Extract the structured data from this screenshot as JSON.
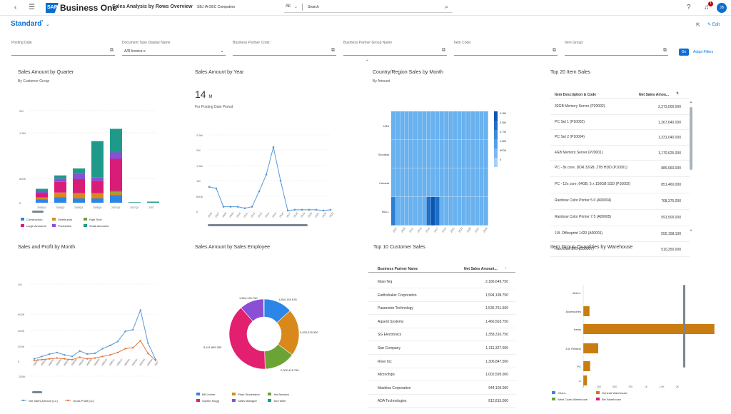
{
  "header": {
    "logo_text": "Business One",
    "logo_mark": "SAP",
    "app_title": "Sales Analysis by Rows Overview",
    "company": "SBJ IA OEC Computers",
    "search_scope": "All",
    "search_placeholder": "Search",
    "notification_count": "1",
    "avatar_initials": "JB"
  },
  "variant": {
    "name": "Standard",
    "modified_marker": "*"
  },
  "filters": [
    {
      "label": "Posting Date",
      "value": ""
    },
    {
      "label": "Document Type Display Name",
      "value": "A/R Invoice e"
    },
    {
      "label": "Business Partner Code:",
      "value": ""
    },
    {
      "label": "Business Partner Group Name",
      "value": ""
    },
    {
      "label": "Item Code:",
      "value": ""
    },
    {
      "label": "Item Group:",
      "value": ""
    }
  ],
  "filter_actions": {
    "go": "Go",
    "adapt": "Adapt Filters"
  },
  "cards": {
    "sales_by_quarter": {
      "title": "Sales Amount by Quarter",
      "subtitle": "By Customer Group"
    },
    "sales_by_year": {
      "title": "Sales Amount by Year",
      "kpi": "14",
      "kpi_unit": "M",
      "subtitle": "For Posting Date Period"
    },
    "country_sales": {
      "title": "Country/Region Sales by Month",
      "subtitle": "By Amount"
    },
    "top_items": {
      "title": "Top 20 Item Sales",
      "col1": "Item Description & Code",
      "col2": "Net Sales Amou...",
      "rows": [
        {
          "name": "32GB Memory Server (P20002)",
          "value": "2,373,000.000"
        },
        {
          "name": "PC Set 1 (P10003)",
          "value": "1,367,640.000"
        },
        {
          "name": "PC Set 2 (P10004)",
          "value": "1,331,040.000"
        },
        {
          "name": "4GB Memory Server (P20001)",
          "value": "1,170,625.000"
        },
        {
          "name": "PC - 8x core, DDR 32GB, 2TB HDD (P10001)",
          "value": "886,660.000"
        },
        {
          "name": "PC - 12x core, 64GB, 5 x 150GB SSD (P10002)",
          "value": "851,460.000"
        },
        {
          "name": "Rainbow Color Printer 5.0 (A00004)",
          "value": "768,375.000"
        },
        {
          "name": "Rainbow Color Printer 7.5 (A00005)",
          "value": "591,500.000"
        },
        {
          "name": "J.B. Officeprint 1420 (A00001)",
          "value": "555,158.100"
        },
        {
          "name": "Hard Disk 3TB (C00007)",
          "value": "510,250.000"
        }
      ]
    },
    "sales_profit_month": {
      "title": "Sales and Profit by Month"
    },
    "sales_employee": {
      "title": "Sales Amount by Sales Employee"
    },
    "top_customers": {
      "title": "Top 10 Customer Sales",
      "col1": "Business Partner Name",
      "col2": "Net Sales Amount...",
      "rows": [
        {
          "name": "Maxi-Teq",
          "value": "2,186,649.750"
        },
        {
          "name": "Earthshaker Corporation",
          "value": "1,594,198.750"
        },
        {
          "name": "Parameter Technology",
          "value": "1,536,751.500"
        },
        {
          "name": "Aquent Systems",
          "value": "1,466,563.750"
        },
        {
          "name": "SG Electronics",
          "value": "1,358,310.750"
        },
        {
          "name": "Star Company",
          "value": "1,311,327.050"
        },
        {
          "name": "River Inc",
          "value": "1,306,847.500"
        },
        {
          "name": "Microchips",
          "value": "1,002,595.000"
        },
        {
          "name": "Mashina Corporation",
          "value": "944,105.000"
        },
        {
          "name": "ADA Technologies",
          "value": "812,815.000"
        }
      ]
    },
    "item_group_qty": {
      "title": "Item Group Quantities by Warehouse"
    }
  },
  "chart_data": [
    {
      "type": "bar",
      "title": "Sales Amount by Quarter",
      "categories": [
        "2008Q1",
        "2008Q2",
        "2008Q3",
        "2008Q4",
        "2007Q1",
        "2007Q2",
        "2007"
      ],
      "ytick_labels": [
        "0",
        "500K",
        "1.5M",
        "2M"
      ],
      "stacked": true,
      "series": [
        {
          "name": "Construction",
          "color": "#2e85e8",
          "values": [
            60,
            100,
            80,
            80,
            140,
            0,
            0
          ]
        },
        {
          "name": "Distributors",
          "color": "#d9891b",
          "values": [
            40,
            90,
            100,
            100,
            50,
            0,
            0
          ]
        },
        {
          "name": "High Tech",
          "color": "#6ba335",
          "values": [
            0,
            0,
            0,
            0,
            30,
            0,
            0
          ]
        },
        {
          "name": "Large Accounts",
          "color": "#d81d78",
          "values": [
            80,
            200,
            260,
            230,
            600,
            0,
            0
          ]
        },
        {
          "name": "Production",
          "color": "#8b4fd6",
          "values": [
            40,
            60,
            110,
            60,
            120,
            0,
            0
          ]
        },
        {
          "name": "Small Accounts",
          "color": "#1f9a8a",
          "values": [
            40,
            60,
            90,
            680,
            440,
            10,
            20
          ]
        }
      ]
    },
    {
      "type": "line",
      "title": "Sales Amount by Year",
      "x": [
        "2006",
        "2007",
        "2008",
        "2009",
        "2010",
        "2011",
        "2012",
        "2013",
        "2014",
        "2015",
        "2016",
        "2017",
        "2018",
        "2019",
        "2020",
        "2021",
        "2022",
        "2023"
      ],
      "ytick_labels": [
        "0",
        "500K",
        "1M",
        "1.5M",
        "2M",
        "2.5M"
      ],
      "series": [
        {
          "name": "Sales",
          "color": "#5899da",
          "values": [
            1.6,
            1.5,
            0.3,
            0.3,
            0.3,
            0.2,
            0.3,
            1.3,
            2.4,
            4.2,
            2.0,
            0.05,
            0.1,
            0.1,
            0.1,
            0.1,
            0.05,
            0.1
          ]
        }
      ]
    },
    {
      "type": "heatmap",
      "title": "Country/Region Sales by Month",
      "rows": [
        "USA",
        "Slovakia",
        "Canada",
        "NULL"
      ],
      "x": [
        "2007",
        "2009",
        "2011",
        "2013",
        "2015",
        "2017",
        "2019",
        "2021",
        "2023",
        "2025",
        "2027",
        "2029"
      ],
      "legend": [
        "4.3M",
        "3.5M",
        "2.7M",
        "1.8M",
        "900K",
        "0"
      ]
    },
    {
      "type": "line",
      "title": "Sales and Profit by Month",
      "ytick_labels": [
        "-200K",
        "0",
        "200K",
        "400K",
        "600K",
        "1M"
      ],
      "series": [
        {
          "name": "Net Sales Amount (LC)",
          "color": "#5899da",
          "values": [
            30,
            60,
            90,
            110,
            80,
            60,
            130,
            90,
            100,
            160,
            200,
            250,
            380,
            400,
            650,
            230,
            20
          ]
        },
        {
          "name": "Gross Profit (LC)",
          "color": "#e8743b",
          "values": [
            10,
            20,
            30,
            40,
            30,
            20,
            50,
            30,
            40,
            60,
            80,
            110,
            160,
            170,
            260,
            100,
            10
          ]
        }
      ]
    },
    {
      "type": "pie",
      "title": "Sales Amount by Sales Employee",
      "slices": [
        {
          "name": "Bill Levine",
          "color": "#2e85e8",
          "value": 1854163.678,
          "label": "1,854,163.678"
        },
        {
          "name": "Pearl Studebaker",
          "color": "#d9891b",
          "value": 3025315.35,
          "label": "3,025,315.350"
        },
        {
          "name": "Jim Boswick",
          "color": "#6ba335",
          "value": 2002415.75,
          "label": "2,002,415.750"
        },
        {
          "name": "Sophie Klogg",
          "color": "#e2206f",
          "value": 5411895.35,
          "label": "5,411,895.350"
        },
        {
          "name": "Sales Manager",
          "color": "#8b4fd6",
          "value": 1564190.75,
          "label": "1,564,190.750"
        },
        {
          "name": "Tom Wille",
          "color": "#1f9a8a",
          "value": 30000,
          "label": ""
        }
      ]
    },
    {
      "type": "bar",
      "title": "Item Group Quantities by Warehouse",
      "orientation": "horizontal",
      "categories": [
        "-NULL-",
        "Accessories",
        "Items",
        "J.B. Printers",
        "PC",
        "C"
      ],
      "xtick_labels": [
        "0",
        "250",
        "500",
        "750",
        "1K",
        "1.5K",
        "2K"
      ],
      "series": [
        {
          "name": "General Warehouse",
          "color": "#c87c12",
          "values": [
            0,
            50,
            1050,
            120,
            55,
            30
          ]
        }
      ],
      "legend": [
        "-NULL-",
        "General Warehouse",
        "West Coast Warehouse",
        "Bin Warehouse"
      ]
    }
  ]
}
